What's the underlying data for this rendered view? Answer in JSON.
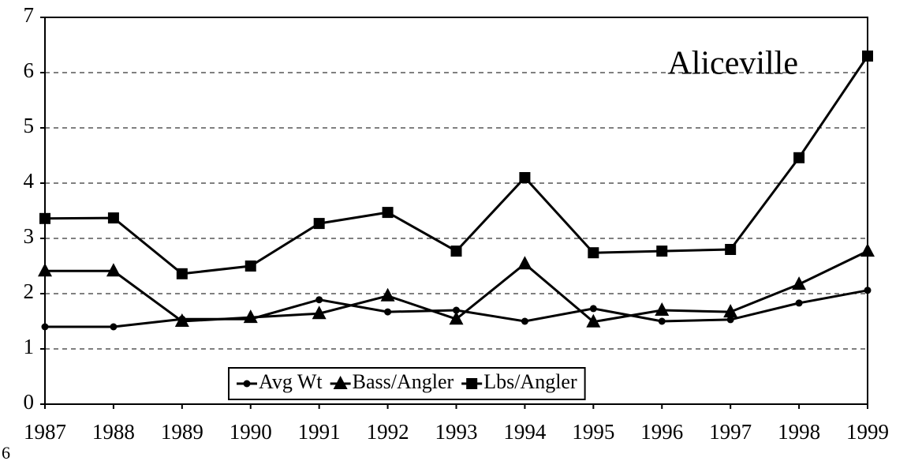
{
  "chart_data": {
    "type": "line",
    "annotation": "Aliceville",
    "footer_text": "6",
    "x": [
      1987,
      1988,
      1989,
      1990,
      1991,
      1992,
      1993,
      1994,
      1995,
      1996,
      1997,
      1998,
      1999
    ],
    "xlim": [
      1987,
      1999
    ],
    "xticks": [
      1987,
      1988,
      1989,
      1990,
      1991,
      1992,
      1993,
      1994,
      1995,
      1996,
      1997,
      1998,
      1999
    ],
    "ylim": [
      0,
      7
    ],
    "yticks": [
      0,
      1,
      2,
      3,
      4,
      5,
      6,
      7
    ],
    "grid": true,
    "legend": "bottom",
    "series": [
      {
        "name": "Avg Wt",
        "color": "#000000",
        "marker": "circle",
        "values": [
          1.4,
          1.4,
          1.54,
          1.54,
          1.89,
          1.67,
          1.7,
          1.5,
          1.73,
          1.5,
          1.53,
          1.83,
          2.06
        ]
      },
      {
        "name": "Bass/Angler",
        "color": "#000000",
        "marker": "triangle",
        "values": [
          2.41,
          2.41,
          1.5,
          1.57,
          1.64,
          1.96,
          1.54,
          2.54,
          1.49,
          1.7,
          1.67,
          2.17,
          2.77
        ]
      },
      {
        "name": "Lbs/Angler",
        "color": "#000000",
        "marker": "square",
        "values": [
          3.36,
          3.37,
          2.36,
          2.5,
          3.27,
          3.47,
          2.77,
          4.1,
          2.74,
          2.77,
          2.8,
          4.46,
          6.3
        ]
      }
    ]
  }
}
